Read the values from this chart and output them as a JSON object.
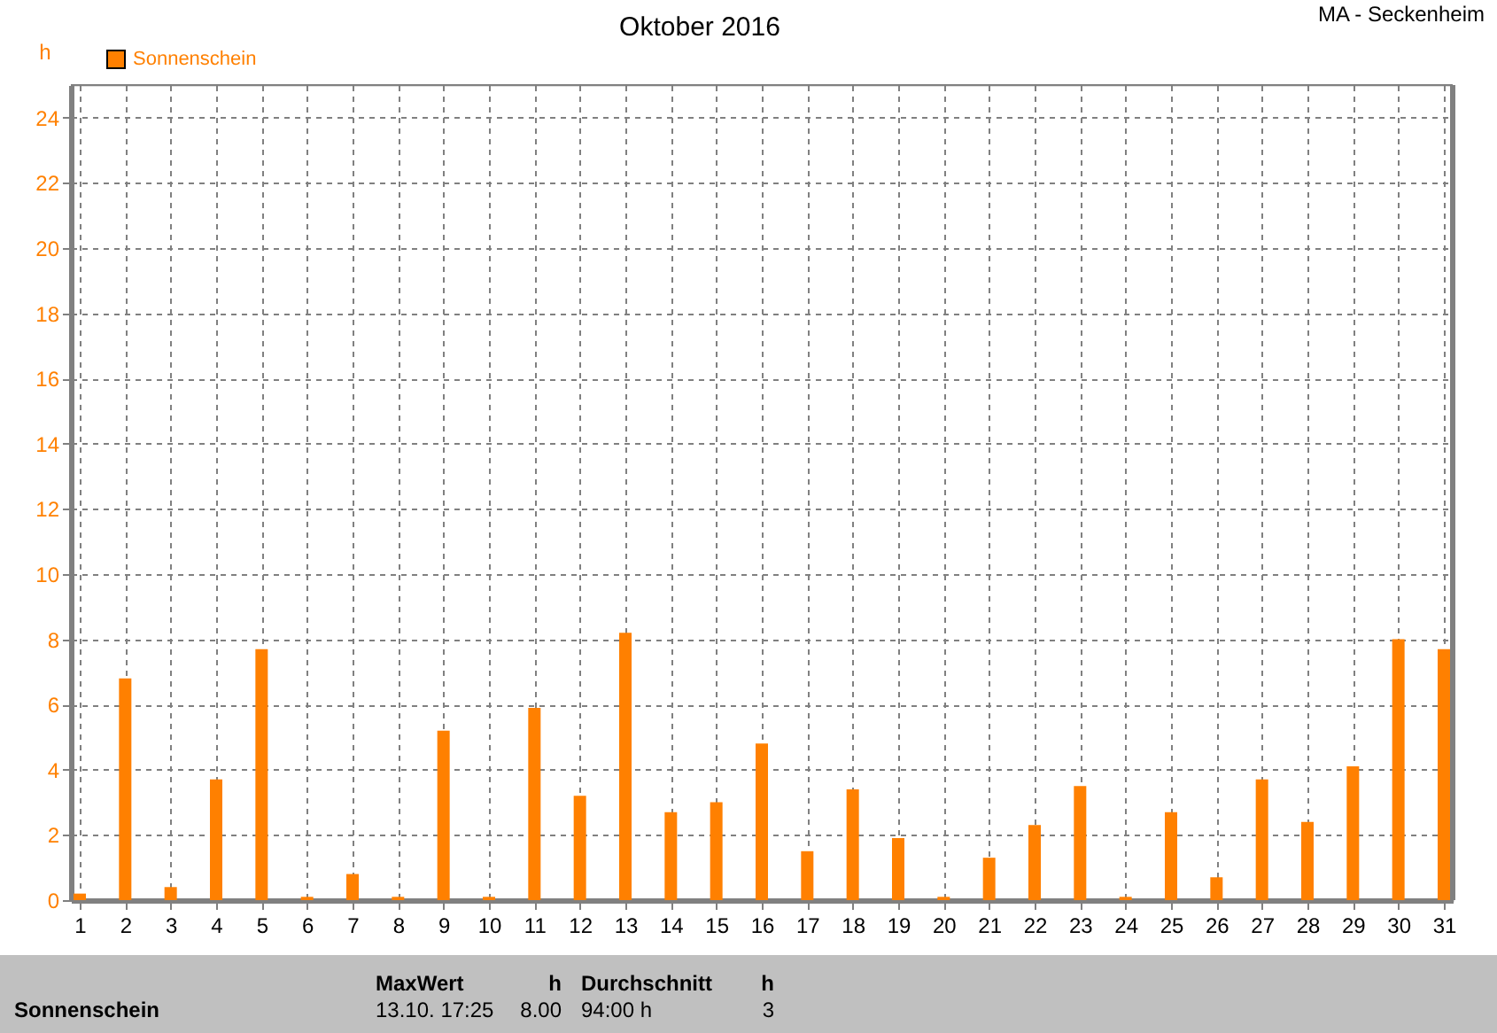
{
  "chart_data": {
    "type": "bar",
    "title": "Oktober 2016",
    "ylabel": "h",
    "x": [
      1,
      2,
      3,
      4,
      5,
      6,
      7,
      8,
      9,
      10,
      11,
      12,
      13,
      14,
      15,
      16,
      17,
      18,
      19,
      20,
      21,
      22,
      23,
      24,
      25,
      26,
      27,
      28,
      29,
      30,
      31
    ],
    "series": [
      {
        "name": "Sonnenschein",
        "color": "#ff8000",
        "values": [
          0.2,
          6.8,
          0.4,
          3.7,
          7.7,
          0.1,
          0.8,
          0.1,
          5.2,
          0.1,
          5.9,
          3.2,
          8.2,
          2.7,
          3.0,
          4.8,
          1.5,
          3.4,
          1.9,
          0.1,
          1.3,
          2.3,
          3.5,
          0.1,
          2.7,
          0.7,
          3.7,
          2.4,
          4.1,
          8.0,
          7.7
        ]
      }
    ],
    "xlim": [
      1,
      31
    ],
    "xticks": [
      1,
      2,
      3,
      4,
      5,
      6,
      7,
      8,
      9,
      10,
      11,
      12,
      13,
      14,
      15,
      16,
      17,
      18,
      19,
      20,
      21,
      22,
      23,
      24,
      25,
      26,
      27,
      28,
      29,
      30,
      31
    ],
    "ylim": [
      0,
      25
    ],
    "yticks": [
      0,
      2,
      4,
      6,
      8,
      10,
      12,
      14,
      16,
      18,
      20,
      22,
      24
    ],
    "grid": true,
    "legend": "top left",
    "annotations": [
      "MA - Seckenheim",
      "Sonnenschein",
      "MaxWert",
      "h",
      "13.10.  17:25",
      "8.00",
      "Durchschnitt",
      "h",
      "94:00 h",
      "3"
    ]
  }
}
